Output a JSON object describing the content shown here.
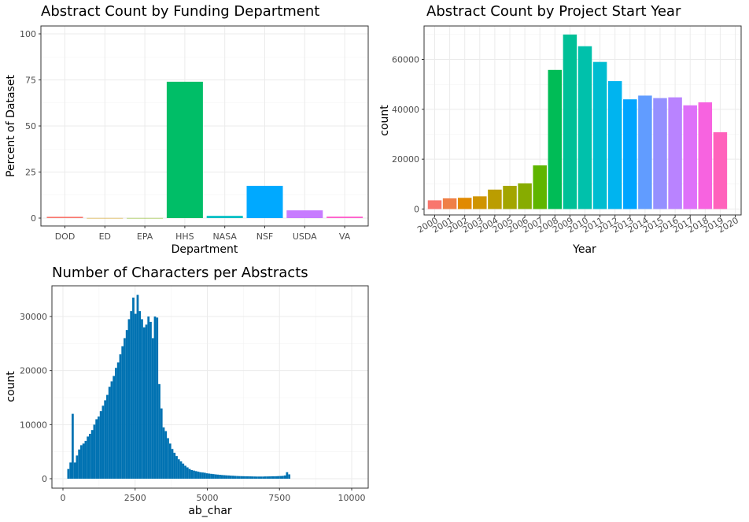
{
  "chart_data": [
    {
      "type": "bar",
      "title": "Abstract Count by Funding Department",
      "xlabel": "Department",
      "ylabel": "Percent of Dataset",
      "ylim": [
        0,
        100
      ],
      "yticks": [
        0,
        25,
        50,
        75,
        100
      ],
      "grid": true,
      "legend": "none",
      "categories": [
        "DOD",
        "ED",
        "EPA",
        "HHS",
        "NASA",
        "NSF",
        "USDA",
        "VA"
      ],
      "values": [
        0.7,
        0.05,
        0.05,
        74.0,
        1.2,
        17.5,
        4.2,
        0.8
      ],
      "colors": [
        "#F8766D",
        "#CD9600",
        "#7CAE00",
        "#00BE67",
        "#00BFC4",
        "#00A9FF",
        "#C77CFF",
        "#FF61CC"
      ]
    },
    {
      "type": "bar",
      "title": "Abstract Count by Project Start Year",
      "xlabel": "Year",
      "ylabel": "count",
      "ylim": [
        0,
        70000
      ],
      "yticks": [
        0,
        20000,
        40000,
        60000
      ],
      "grid": true,
      "legend": "none",
      "categories": [
        "2000",
        "2001",
        "2002",
        "2003",
        "2004",
        "2005",
        "2006",
        "2007",
        "2008",
        "2009",
        "2010",
        "2011",
        "2012",
        "2013",
        "2014",
        "2015",
        "2016",
        "2017",
        "2018",
        "2019",
        "2020"
      ],
      "values": [
        3500,
        4300,
        4500,
        5100,
        7800,
        9300,
        10300,
        17500,
        55800,
        70000,
        65300,
        59000,
        51300,
        44000,
        45500,
        44500,
        44800,
        41600,
        42800,
        30800,
        0
      ],
      "colors": [
        "#F8766D",
        "#EF7F47",
        "#E18A00",
        "#CF9400",
        "#BB9D00",
        "#A3A500",
        "#87AC00",
        "#5FB500",
        "#00BC56",
        "#00C097",
        "#00C1AB",
        "#00BDD0",
        "#00B4EF",
        "#00A5FF",
        "#619CFF",
        "#9590FF",
        "#B983FF",
        "#DE71F9",
        "#F763E0",
        "#FF62BC",
        "#FF67A4"
      ]
    },
    {
      "type": "bar",
      "title": "Number of Characters per Abstracts",
      "xlabel": "ab_char",
      "ylabel": "count",
      "xlim": [
        -300,
        10400
      ],
      "ylim": [
        -1600,
        35400
      ],
      "xticks": [
        0,
        2500,
        5000,
        7500,
        10000
      ],
      "yticks": [
        0,
        10000,
        20000,
        30000
      ],
      "grid": true,
      "legend": "none",
      "bin_width": 75,
      "bins_start": 150,
      "values": [
        1800,
        3000,
        12000,
        3000,
        4300,
        5400,
        6200,
        6500,
        7000,
        7800,
        8300,
        9000,
        10000,
        11000,
        11500,
        12500,
        13500,
        14500,
        15500,
        17000,
        18000,
        19000,
        20500,
        21500,
        23000,
        24500,
        26000,
        27500,
        29500,
        31000,
        33500,
        30500,
        34000,
        31000,
        29500,
        28000,
        28500,
        30000,
        29000,
        26000,
        30000,
        29800,
        17500,
        13000,
        9500,
        8800,
        7500,
        6500,
        5500,
        4800,
        4200,
        3600,
        3200,
        2800,
        2400,
        2100,
        1800,
        1600,
        1500,
        1400,
        1300,
        1200,
        1150,
        1100,
        1000,
        950,
        900,
        850,
        800,
        760,
        720,
        680,
        650,
        620,
        600,
        570,
        550,
        520,
        500,
        480,
        470,
        460,
        450,
        440,
        430,
        420,
        410,
        400,
        400,
        400,
        400,
        420,
        420,
        430,
        450,
        450,
        460,
        480,
        500,
        520,
        600,
        1200,
        800,
        0,
        0,
        0,
        0,
        0,
        0,
        0,
        0,
        0,
        0,
        0,
        0,
        0,
        0,
        0,
        0,
        0,
        0,
        0,
        0,
        0,
        0,
        0,
        0,
        0,
        0,
        0,
        0,
        0,
        0,
        0
      ],
      "color": "#0072B2"
    }
  ]
}
